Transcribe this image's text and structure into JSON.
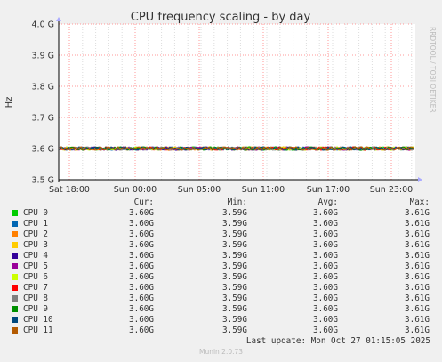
{
  "chart_data": {
    "type": "line",
    "title": "CPU frequency scaling - by day",
    "ylabel": "Hz",
    "side_label": "RRDTOOL / TOBI OETIKER",
    "ylim": [
      3.5,
      4.0
    ],
    "y_ticks": [
      {
        "value": 4.0,
        "label": "4.0 G"
      },
      {
        "value": 3.9,
        "label": "3.9 G"
      },
      {
        "value": 3.8,
        "label": "3.8 G"
      },
      {
        "value": 3.7,
        "label": "3.7 G"
      },
      {
        "value": 3.6,
        "label": "3.6 G"
      },
      {
        "value": 3.5,
        "label": "3.5 G"
      }
    ],
    "x_ticks": [
      "Sat 18:00",
      "Sun 00:00",
      "Sun 05:00",
      "Sun 11:00",
      "Sun 17:00",
      "Sun 23:00"
    ],
    "grid": true,
    "legend_headers": {
      "cur": "Cur:",
      "min": "Min:",
      "avg": "Avg:",
      "max": "Max:"
    },
    "series": [
      {
        "name": "CPU 0",
        "color": "#00cc00",
        "cur": "3.60G",
        "min": "3.59G",
        "avg": "3.60G",
        "max": "3.61G"
      },
      {
        "name": "CPU 1",
        "color": "#0066b3",
        "cur": "3.60G",
        "min": "3.59G",
        "avg": "3.60G",
        "max": "3.61G"
      },
      {
        "name": "CPU 2",
        "color": "#ff8000",
        "cur": "3.60G",
        "min": "3.59G",
        "avg": "3.60G",
        "max": "3.61G"
      },
      {
        "name": "CPU 3",
        "color": "#ffcc00",
        "cur": "3.60G",
        "min": "3.59G",
        "avg": "3.60G",
        "max": "3.61G"
      },
      {
        "name": "CPU 4",
        "color": "#330099",
        "cur": "3.60G",
        "min": "3.59G",
        "avg": "3.60G",
        "max": "3.61G"
      },
      {
        "name": "CPU 5",
        "color": "#990099",
        "cur": "3.60G",
        "min": "3.59G",
        "avg": "3.60G",
        "max": "3.61G"
      },
      {
        "name": "CPU 6",
        "color": "#ccff00",
        "cur": "3.60G",
        "min": "3.59G",
        "avg": "3.60G",
        "max": "3.61G"
      },
      {
        "name": "CPU 7",
        "color": "#ff0000",
        "cur": "3.60G",
        "min": "3.59G",
        "avg": "3.60G",
        "max": "3.61G"
      },
      {
        "name": "CPU 8",
        "color": "#808080",
        "cur": "3.60G",
        "min": "3.59G",
        "avg": "3.60G",
        "max": "3.61G"
      },
      {
        "name": "CPU 9",
        "color": "#008f00",
        "cur": "3.60G",
        "min": "3.59G",
        "avg": "3.60G",
        "max": "3.61G"
      },
      {
        "name": "CPU 10",
        "color": "#00487d",
        "cur": "3.60G",
        "min": "3.59G",
        "avg": "3.60G",
        "max": "3.61G"
      },
      {
        "name": "CPU 11",
        "color": "#b35a00",
        "cur": "3.60G",
        "min": "3.59G",
        "avg": "3.60G",
        "max": "3.61G"
      }
    ],
    "value_level": 3.6
  },
  "last_update": "Last update: Mon Oct 27 01:15:05 2025",
  "footer": "Munin 2.0.73"
}
